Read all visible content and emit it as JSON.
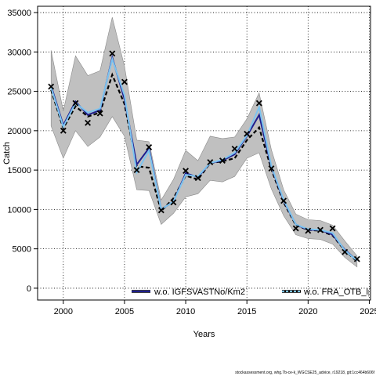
{
  "chart_data": {
    "type": "line",
    "xlabel": "Years",
    "ylabel": "Catch",
    "xlim": [
      1997.9,
      2025.1
    ],
    "ylim": [
      -1500,
      35800
    ],
    "x_ticks": [
      2000,
      2005,
      2010,
      2015,
      2020,
      2025
    ],
    "y_ticks": [
      0,
      5000,
      10000,
      15000,
      20000,
      25000,
      30000,
      35000
    ],
    "grid": true,
    "legend_position": "bottom",
    "colors": {
      "band": "#c0c0c0",
      "band_edge": "#8a8a8a",
      "full_model": "#000000",
      "series1": "#1f1f8f",
      "series2": "#7cc4f0",
      "observed": "#000000"
    },
    "x": [
      1999,
      2000,
      2001,
      2002,
      2003,
      2004,
      2005,
      2006,
      2007,
      2008,
      2009,
      2010,
      2011,
      2012,
      2013,
      2014,
      2015,
      2016,
      2017,
      2018,
      2019,
      2020,
      2021,
      2022,
      2023,
      2024
    ],
    "band_upper": [
      30200,
      22500,
      29500,
      27000,
      27600,
      34400,
      28200,
      18800,
      18600,
      11200,
      13800,
      17500,
      16200,
      19300,
      19000,
      19200,
      21500,
      24800,
      17600,
      12500,
      9400,
      8700,
      8600,
      8000,
      6000,
      4100
    ],
    "band_lower": [
      20600,
      16500,
      20000,
      18000,
      19200,
      21800,
      19300,
      12500,
      12400,
      8100,
      9500,
      11600,
      12000,
      13700,
      13500,
      14200,
      16500,
      17200,
      12600,
      9200,
      6800,
      6300,
      6200,
      5600,
      3900,
      2700
    ],
    "full_model": [
      25200,
      20300,
      23100,
      21800,
      22300,
      27100,
      23400,
      15500,
      15300,
      9800,
      11400,
      14300,
      13800,
      15900,
      16100,
      16500,
      18800,
      20400,
      15100,
      10900,
      8000,
      7400,
      7300,
      6700,
      4800,
      3400
    ],
    "series": [
      {
        "name": "w.o. IGFSVASTNo/Km2",
        "values": [
          25700,
          20700,
          23700,
          22000,
          22600,
          29300,
          24000,
          15700,
          17800,
          10000,
          11000,
          14600,
          14100,
          15900,
          16200,
          17000,
          19300,
          22000,
          15400,
          11100,
          8100,
          7400,
          7400,
          6800,
          4900,
          3500
        ]
      },
      {
        "name": "w.o. FRA_OTB_lp",
        "values": [
          25500,
          20500,
          23500,
          22300,
          22800,
          29100,
          24500,
          14700,
          17500,
          10000,
          11000,
          14400,
          14200,
          15900,
          16300,
          17200,
          19400,
          23000,
          15500,
          11200,
          8100,
          7500,
          7400,
          7000,
          4800,
          3500
        ]
      }
    ],
    "observed": [
      25600,
      20000,
      23500,
      21000,
      22200,
      29800,
      26200,
      15000,
      17900,
      9900,
      10900,
      14900,
      14000,
      16000,
      16200,
      17700,
      19600,
      23500,
      15200,
      11100,
      7600,
      7300,
      7400,
      7600,
      4600,
      3700
    ]
  },
  "caption": "stockassessment.org, whg.7b-ce-k_WGCSE25_advice, r19218, git:1cc464b606f"
}
